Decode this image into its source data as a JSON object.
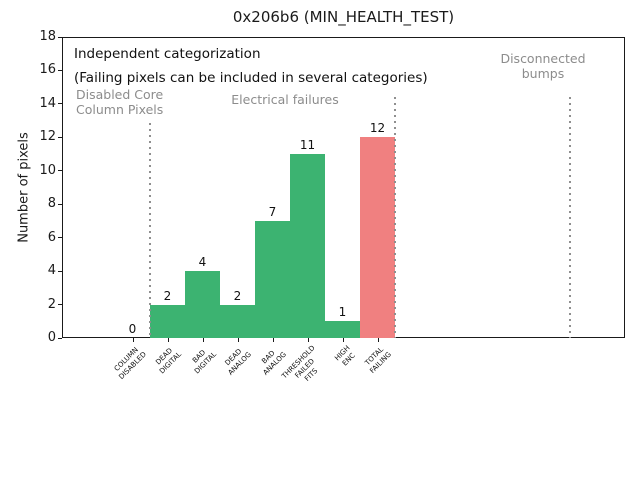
{
  "title": "0x206b6 (MIN_HEALTH_TEST)",
  "chart_data": {
    "type": "bar",
    "title": "0x206b6 (MIN_HEALTH_TEST)",
    "xlabel": "",
    "ylabel": "Number of pixels",
    "ylim": [
      0,
      18
    ],
    "yticks": [
      0,
      2,
      4,
      6,
      8,
      10,
      12,
      14,
      16,
      18
    ],
    "grid": false,
    "legend": "none",
    "categories": [
      "COLUMN\nDISABLED",
      "DEAD\nDIGITAL",
      "BAD\nDIGITAL",
      "DEAD\nANALOG",
      "BAD\nANALOG",
      "THRESHOLD\nFAILED\nFITS",
      "HIGH\nENC",
      "TOTAL\nFAILING"
    ],
    "values": [
      0,
      2,
      4,
      2,
      7,
      11,
      1,
      12
    ],
    "value_labels": [
      "0",
      "2",
      "4",
      "2",
      "7",
      "11",
      "1",
      "12"
    ],
    "bar_colors": [
      "#3cb371",
      "#3cb371",
      "#3cb371",
      "#3cb371",
      "#3cb371",
      "#3cb371",
      "#3cb371",
      "#f08080"
    ],
    "colors": {
      "green_bar": "#3cb371",
      "red_bar": "#f08080",
      "gray_text": "#8c8c8c",
      "separator_gray": "#8f8f8f",
      "axis_black": "#1a1a1a"
    },
    "annotations": {
      "note_line1": "Independent categorization",
      "note_line2": "(Failing pixels can be included in several categories)",
      "regions": [
        {
          "label": "Disabled Core\nColumn Pixels"
        },
        {
          "label": "Electrical failures"
        },
        {
          "label": "Disconnected\nbumps"
        }
      ],
      "separators": [
        {
          "x_boundary": 0.5,
          "top_value": 12.9
        },
        {
          "x_boundary": 7.5,
          "top_value": 14.4
        },
        {
          "x_boundary": 12.5,
          "top_value": 14.4
        }
      ]
    }
  }
}
